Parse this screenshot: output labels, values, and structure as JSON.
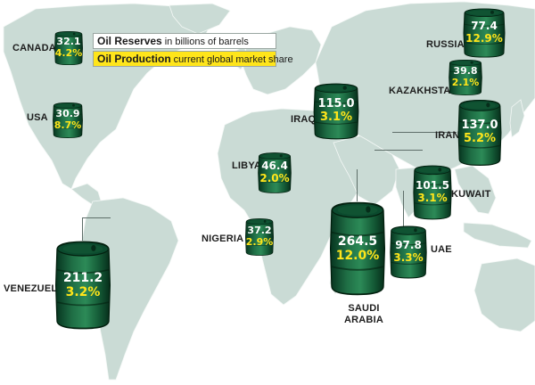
{
  "legend": {
    "reserves_label": "Oil Reserves",
    "reserves_desc": "in billions of barrels",
    "production_label": "Oil Production",
    "production_desc": "current global market share"
  },
  "countries": {
    "canada": {
      "name": "CANADA",
      "reserves": "32.1",
      "share": "4.2%"
    },
    "usa": {
      "name": "USA",
      "reserves": "30.9",
      "share": "8.7%"
    },
    "venezuela": {
      "name": "VENEZUELA",
      "reserves": "211.2",
      "share": "3.2%"
    },
    "nigeria": {
      "name": "NIGERIA",
      "reserves": "37.2",
      "share": "2.9%"
    },
    "libya": {
      "name": "LIBYA",
      "reserves": "46.4",
      "share": "2.0%"
    },
    "iraq": {
      "name": "IRAQ",
      "reserves": "115.0",
      "share": "3.1%"
    },
    "saudi_arabia": {
      "name_line1": "SAUDI",
      "name_line2": "ARABIA",
      "reserves": "264.5",
      "share": "12.0%"
    },
    "uae": {
      "name": "UAE",
      "reserves": "97.8",
      "share": "3.3%"
    },
    "kuwait": {
      "name": "KUWAIT",
      "reserves": "101.5",
      "share": "3.1%"
    },
    "iran": {
      "name": "IRAN",
      "reserves": "137.0",
      "share": "5.2%"
    },
    "kazakhstan": {
      "name": "KAZAKHSTAN",
      "reserves": "39.8",
      "share": "2.1%"
    },
    "russia": {
      "name": "RUSSIA",
      "reserves": "77.4",
      "share": "12.9%"
    }
  },
  "colors": {
    "land": "#cadbd5",
    "barrel_dark": "#0b4a2e",
    "barrel_mid": "#1f6e45",
    "share_text": "#ffe51a",
    "legend_highlight": "#ffe51a"
  }
}
